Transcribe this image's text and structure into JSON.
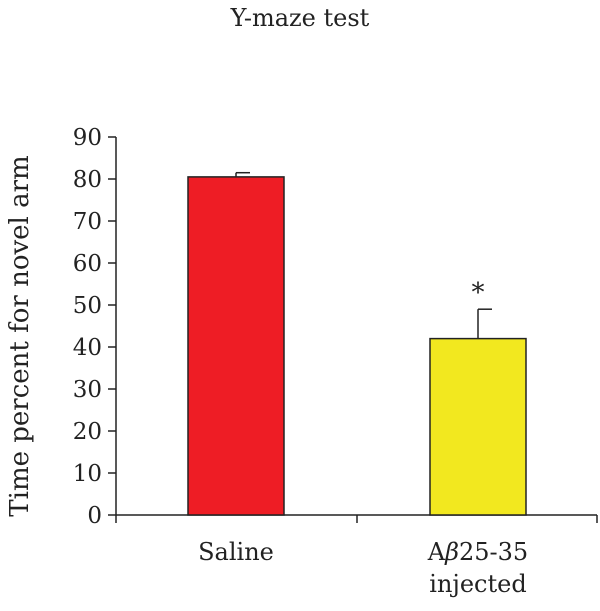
{
  "chart_data": {
    "type": "bar",
    "title": "Y-maze test",
    "xlabel": "",
    "ylabel": "Time percent for novel arm",
    "ylim": [
      0,
      90
    ],
    "yticks": [
      0,
      10,
      20,
      30,
      40,
      50,
      60,
      70,
      80,
      90
    ],
    "categories": [
      {
        "line1_prefix": "A",
        "line1_italic": "β",
        "line1_suffix": "25-35",
        "line2": "",
        "label": "Saline"
      },
      {
        "line1_prefix": "A",
        "line1_italic": "β",
        "line1_suffix": "25-35",
        "line2": "injected",
        "label": "Aβ25-35 injected"
      }
    ],
    "values": [
      80.5,
      42
    ],
    "errors": [
      1,
      7
    ],
    "colors": [
      "#ee1d25",
      "#f2e81f"
    ],
    "annotations": [
      "",
      "*"
    ],
    "grid": false
  }
}
